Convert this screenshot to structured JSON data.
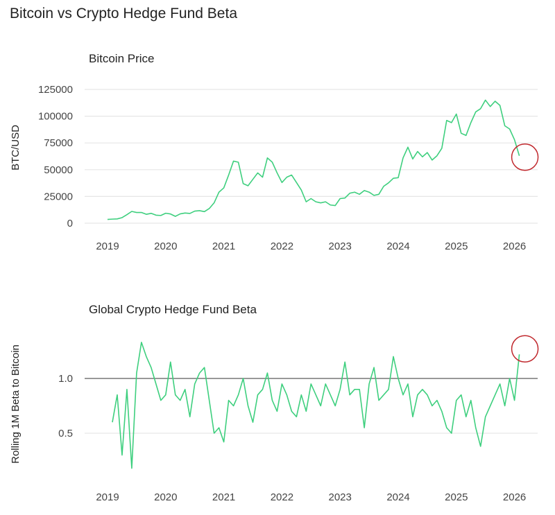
{
  "title": "Bitcoin vs Crypto Hedge Fund Beta",
  "colors": {
    "line": "#3ecf7e",
    "grid": "#e6e6e6",
    "reference": "#777777",
    "annotation": "#c0282d"
  },
  "chart_data": [
    {
      "type": "line",
      "title": "Bitcoin Price",
      "ylabel": "BTC/USD",
      "xlabel": "",
      "ylim": [
        0,
        125000
      ],
      "yticks": [
        0,
        25000,
        50000,
        75000,
        100000,
        125000
      ],
      "xticks": [
        "2019",
        "2020",
        "2021",
        "2022",
        "2023",
        "2024",
        "2025",
        "2026"
      ],
      "grid": true,
      "x_start": "2019-01",
      "x_step": "month",
      "values": [
        3500,
        3800,
        4000,
        5200,
        8000,
        11000,
        10000,
        10000,
        8300,
        9200,
        7500,
        7200,
        9300,
        8600,
        6400,
        8700,
        9500,
        9100,
        11300,
        11700,
        10800,
        13700,
        19000,
        29000,
        33000,
        45000,
        58000,
        57000,
        37000,
        35000,
        41000,
        47000,
        43000,
        61000,
        57000,
        47000,
        38000,
        43000,
        45000,
        38000,
        31000,
        20000,
        23000,
        20000,
        19000,
        20000,
        17000,
        16500,
        23000,
        23500,
        28000,
        29000,
        27000,
        30500,
        29000,
        26000,
        27000,
        34500,
        37700,
        42000,
        42500,
        61000,
        71000,
        60000,
        67000,
        62000,
        66000,
        59000,
        63000,
        70000,
        96000,
        94000,
        102000,
        84000,
        82000,
        94000,
        104000,
        107000,
        115000,
        109000,
        114000,
        110000,
        91000,
        88000,
        78000,
        63000
      ],
      "annotation": "circle around latest value"
    },
    {
      "type": "line",
      "title": "Global Crypto Hedge Fund Beta",
      "ylabel": "Rolling 1M Beta to Bitcoin",
      "xlabel": "",
      "ylim": [
        0.1,
        1.4
      ],
      "yticks": [
        0.5,
        1.0
      ],
      "ytick_labels": [
        "0.5",
        "1.0"
      ],
      "reference_line": 1.0,
      "xticks": [
        "2019",
        "2020",
        "2021",
        "2022",
        "2023",
        "2024",
        "2025",
        "2026"
      ],
      "grid": true,
      "x_start": "2019-02",
      "x_step": "month",
      "values": [
        0.6,
        0.85,
        0.3,
        0.9,
        0.18,
        1.05,
        1.33,
        1.2,
        1.1,
        0.95,
        0.8,
        0.85,
        1.15,
        0.85,
        0.8,
        0.9,
        0.65,
        0.95,
        1.05,
        1.1,
        0.8,
        0.5,
        0.55,
        0.42,
        0.8,
        0.75,
        0.85,
        1.0,
        0.75,
        0.6,
        0.85,
        0.9,
        1.05,
        0.8,
        0.7,
        0.95,
        0.85,
        0.7,
        0.65,
        0.85,
        0.7,
        0.95,
        0.85,
        0.75,
        0.95,
        0.85,
        0.75,
        0.9,
        1.15,
        0.85,
        0.9,
        0.9,
        0.55,
        0.95,
        1.1,
        0.8,
        0.85,
        0.9,
        1.2,
        1.0,
        0.85,
        0.95,
        0.65,
        0.85,
        0.9,
        0.85,
        0.75,
        0.8,
        0.7,
        0.55,
        0.5,
        0.8,
        0.85,
        0.65,
        0.8,
        0.55,
        0.38,
        0.65,
        0.75,
        0.85,
        0.95,
        0.75,
        1.0,
        0.8,
        1.22
      ],
      "annotation": "circle around latest value"
    }
  ]
}
